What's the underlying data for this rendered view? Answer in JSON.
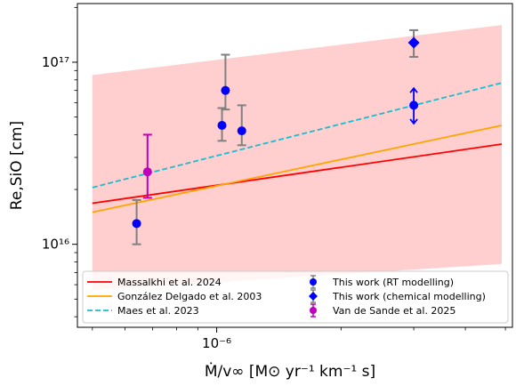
{
  "chart_data": {
    "type": "scatter",
    "xlabel": "Ṁ/v∞ [M⊙ yr⁻¹ km⁻¹ s]",
    "ylabel": "Re,SiO [cm]",
    "xscale": "log",
    "yscale": "log",
    "xlim": [
      4.6e-07,
      5.2e-06
    ],
    "ylim": [
      3500000000000000.0,
      2.1e+17
    ],
    "x_ticks": [
      {
        "value": 1e-06,
        "label": "10⁻⁶"
      }
    ],
    "y_ticks": [
      {
        "value": 1e+16,
        "label": "10¹⁶"
      },
      {
        "value": 1e+17,
        "label": "10¹⁷"
      }
    ],
    "legend_position": "bottom",
    "colors": {
      "red": "#ff0000",
      "orange": "#ffa500",
      "cyan": "#17becf",
      "blue": "#0000ff",
      "magenta": "#bf00bf",
      "band": "#ffb3b3",
      "errorbar_gray": "#808080"
    },
    "band": {
      "x": [
        5e-07,
        4.9e-06
      ],
      "upper": [
        8.5e+16,
        1.6e+17
      ],
      "lower": [
        5600000000000000.0,
        7800000000000000.0
      ]
    },
    "series": [
      {
        "name": "Massalkhi et al. 2024",
        "kind": "line",
        "color": "red",
        "style": "solid",
        "x": [
          5e-07,
          4.9e-06
        ],
        "y": [
          1.68e+16,
          3.55e+16
        ]
      },
      {
        "name": "González Delgado et al. 2003",
        "kind": "line",
        "color": "orange",
        "style": "solid",
        "x": [
          5e-07,
          4.9e-06
        ],
        "y": [
          1.5e+16,
          4.5e+16
        ]
      },
      {
        "name": "Maes et al. 2023",
        "kind": "line",
        "color": "cyan",
        "style": "dashed",
        "x": [
          5e-07,
          4.9e-06
        ],
        "y": [
          2.05e+16,
          7.7e+16
        ]
      },
      {
        "name": "This work (RT modelling)",
        "kind": "points",
        "marker": "circle",
        "color": "blue",
        "errcolor": "errorbar_gray",
        "points": [
          {
            "x": 6.4e-07,
            "y": 1.3e+16,
            "ylo": 1e+16,
            "yhi": 1.75e+16
          },
          {
            "x": 1.03e-06,
            "y": 4.5e+16,
            "ylo": 3.7e+16,
            "yhi": 5.6e+16
          },
          {
            "x": 1.05e-06,
            "y": 7e+16,
            "ylo": 5.5e+16,
            "yhi": 1.1e+17
          },
          {
            "x": 1.15e-06,
            "y": 4.2e+16,
            "ylo": 3.5e+16,
            "yhi": 5.8e+16
          },
          {
            "x": 3e-06,
            "y": 5.8e+16,
            "ylo": null,
            "yhi": null,
            "range_lo": 4.6e+16,
            "range_hi": 7.2e+16
          }
        ]
      },
      {
        "name": "This work (chemical modelling)",
        "kind": "points",
        "marker": "diamond",
        "color": "blue",
        "errcolor": "errorbar_gray",
        "points": [
          {
            "x": 3e-06,
            "y": 1.28e+17,
            "ylo": 1.07e+17,
            "yhi": 1.5e+17
          }
        ]
      },
      {
        "name": "Van de Sande et al. 2025",
        "kind": "points",
        "marker": "circle",
        "color": "magenta",
        "errcolor": "magenta",
        "points": [
          {
            "x": 6.8e-07,
            "y": 2.5e+16,
            "ylo": 1.8e+16,
            "yhi": 4e+16
          }
        ]
      }
    ]
  }
}
